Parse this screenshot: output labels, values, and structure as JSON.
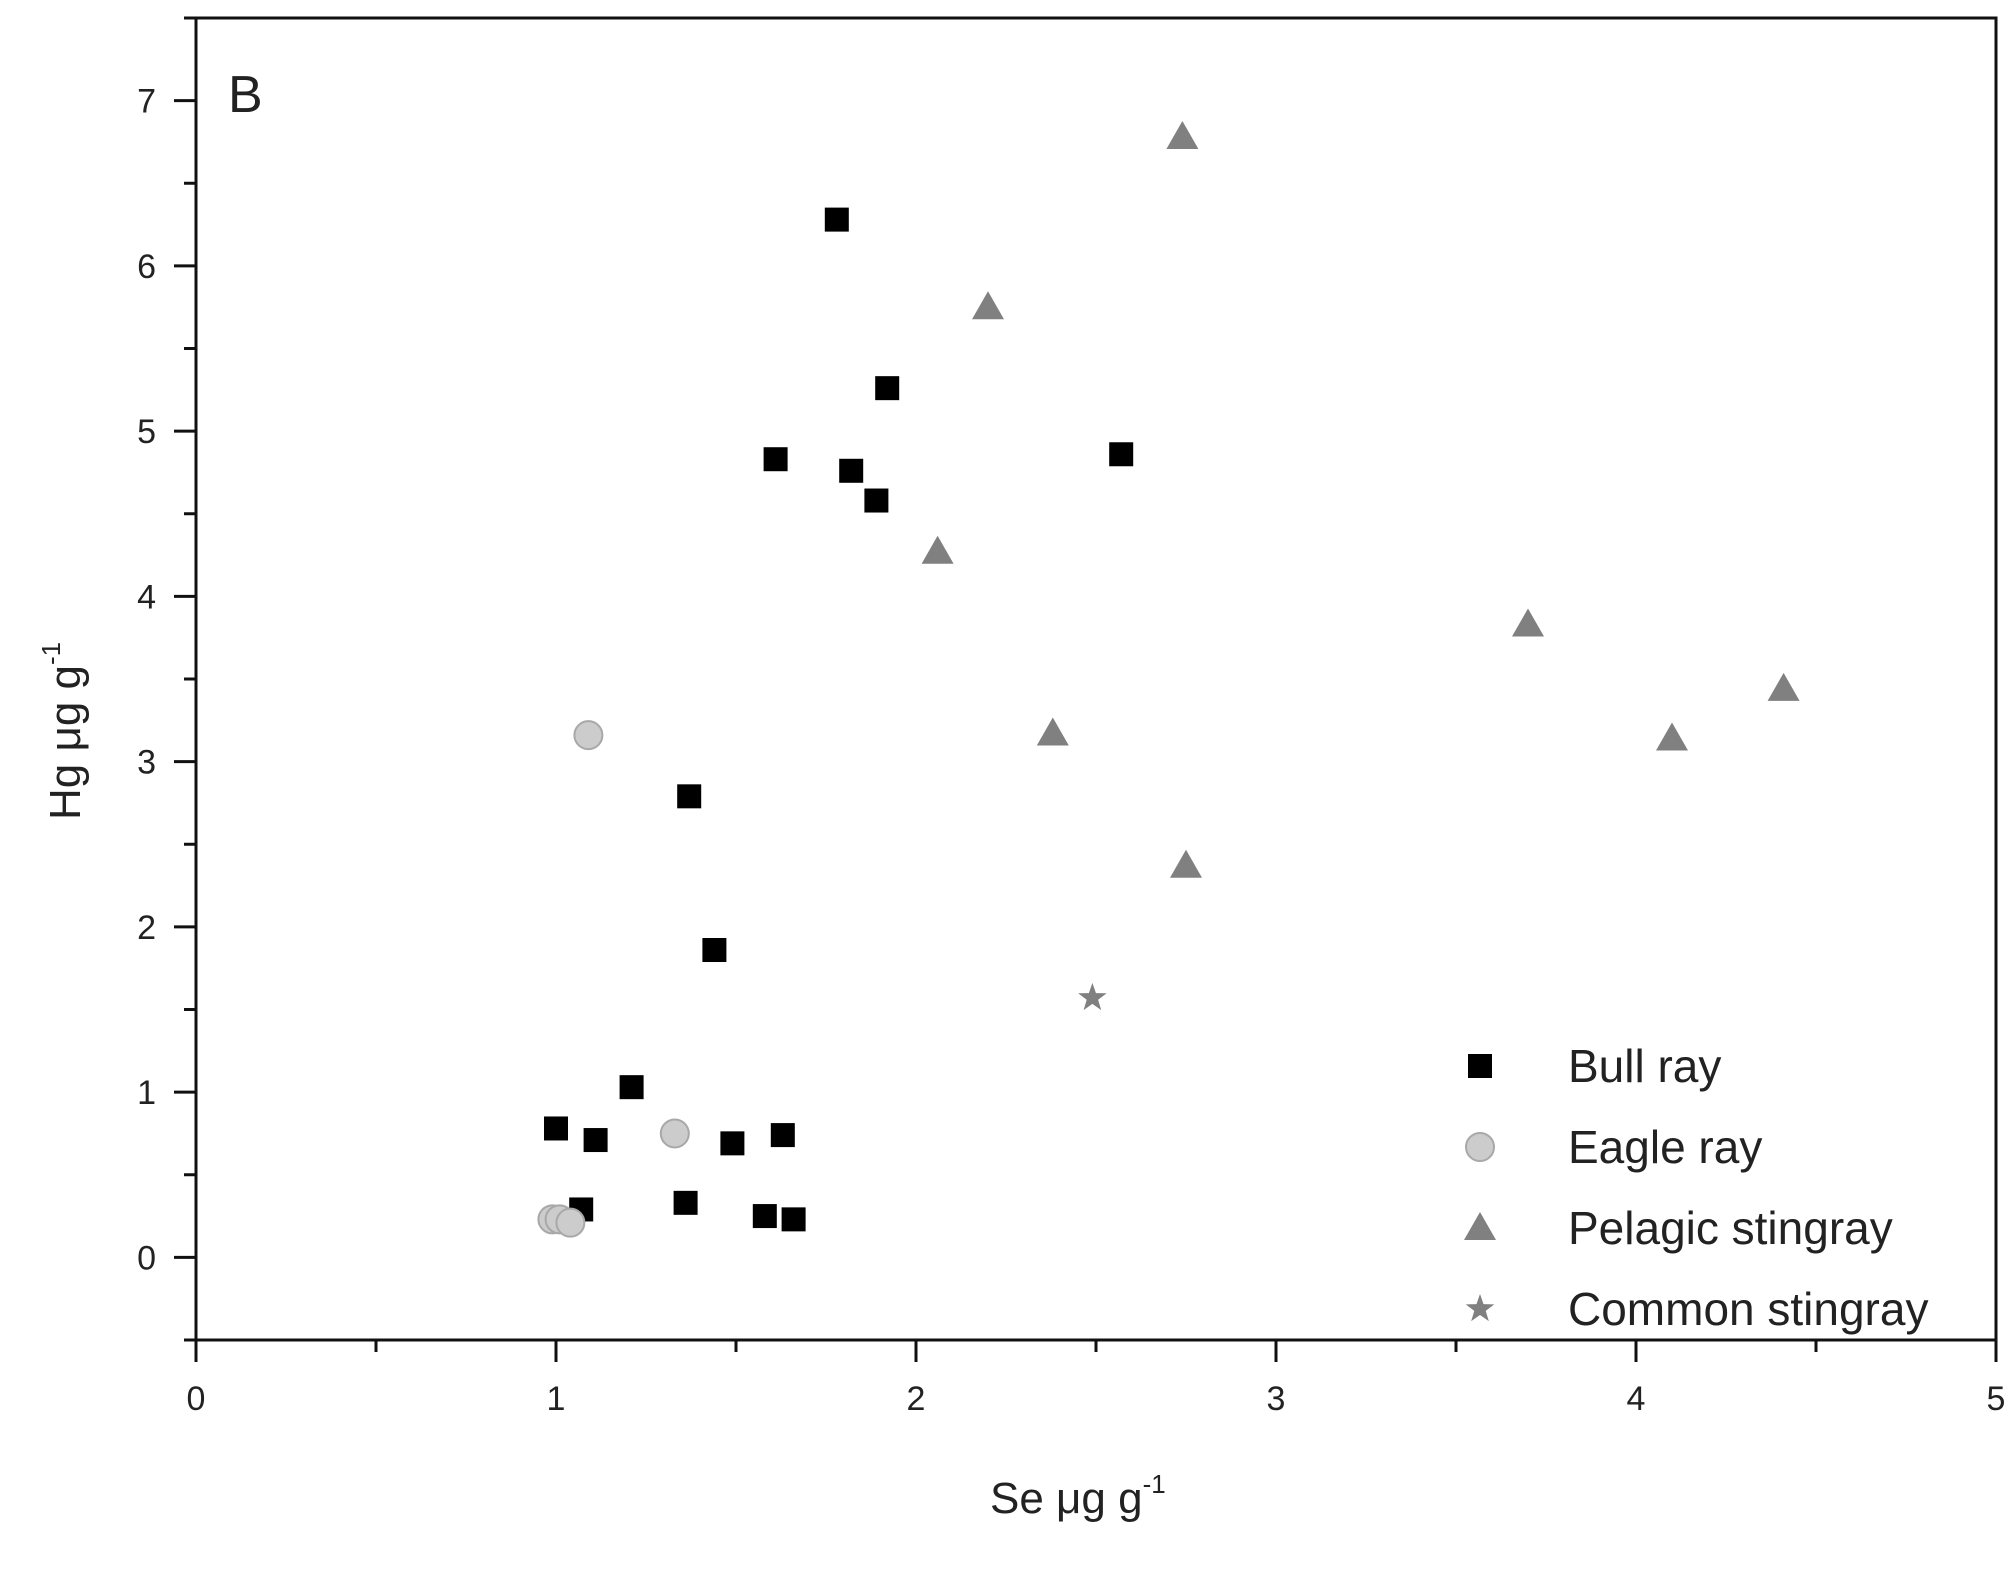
{
  "chart_data": {
    "type": "scatter",
    "panel_label": "B",
    "xlabel": "Se μg g",
    "xlabel_superscript": "-1",
    "ylabel": "Hg μg g",
    "ylabel_superscript": "-1",
    "xlim": [
      0,
      5
    ],
    "ylim": [
      -0.5,
      7.5
    ],
    "xticks": [
      0,
      1,
      2,
      3,
      4,
      5
    ],
    "yticks": [
      0,
      1,
      2,
      3,
      4,
      5,
      6,
      7
    ],
    "grid": false,
    "legend_position": "bottom-right",
    "series": [
      {
        "name": "Bull ray",
        "marker": "square",
        "color": "#000000",
        "points": [
          [
            1.78,
            6.28
          ],
          [
            1.92,
            5.26
          ],
          [
            1.61,
            4.83
          ],
          [
            1.82,
            4.76
          ],
          [
            1.89,
            4.58
          ],
          [
            2.57,
            4.86
          ],
          [
            1.37,
            2.79
          ],
          [
            1.44,
            1.86
          ],
          [
            1.21,
            1.03
          ],
          [
            1.0,
            0.78
          ],
          [
            1.11,
            0.71
          ],
          [
            1.49,
            0.69
          ],
          [
            1.63,
            0.74
          ],
          [
            1.07,
            0.29
          ],
          [
            1.36,
            0.33
          ],
          [
            1.58,
            0.25
          ],
          [
            1.66,
            0.23
          ]
        ]
      },
      {
        "name": "Eagle ray",
        "marker": "circle",
        "color": "#cccccc",
        "points": [
          [
            1.09,
            3.16
          ],
          [
            1.33,
            0.75
          ],
          [
            0.99,
            0.23
          ],
          [
            1.01,
            0.23
          ],
          [
            1.04,
            0.21
          ]
        ]
      },
      {
        "name": "Pelagic stingray",
        "marker": "triangle",
        "color": "#808080",
        "points": [
          [
            2.74,
            6.78
          ],
          [
            2.2,
            5.75
          ],
          [
            2.06,
            4.27
          ],
          [
            3.7,
            3.83
          ],
          [
            4.41,
            3.44
          ],
          [
            2.38,
            3.17
          ],
          [
            4.1,
            3.14
          ],
          [
            2.75,
            2.37
          ]
        ]
      },
      {
        "name": "Common stingray",
        "marker": "star",
        "color": "#808080",
        "points": [
          [
            2.49,
            1.57
          ]
        ]
      }
    ]
  }
}
